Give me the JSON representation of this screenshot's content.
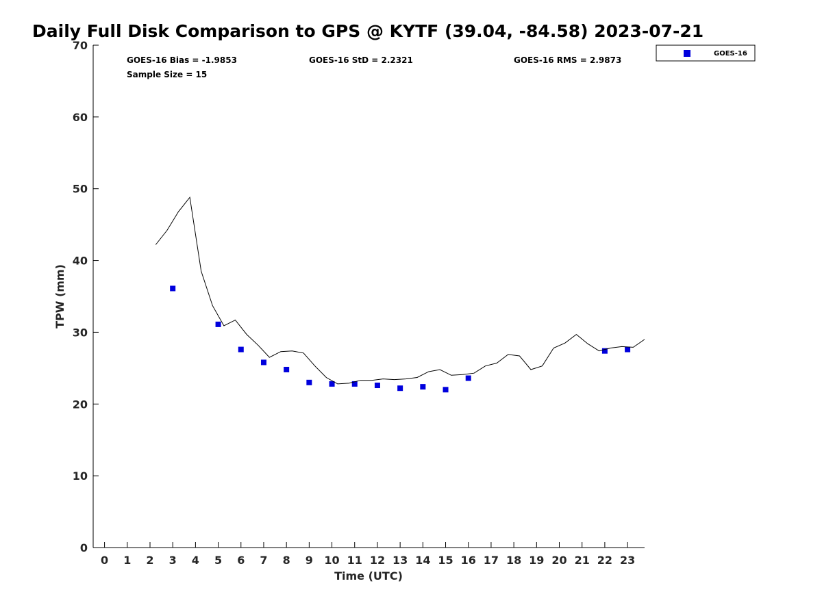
{
  "chart_data": {
    "type": "scatter",
    "title": "Daily Full Disk Comparison to GPS @ KYTF (39.04, -84.58) 2023-07-21",
    "xlabel": "Time (UTC)",
    "ylabel": "TPW (mm)",
    "xlim": [
      -0.5,
      23.75
    ],
    "ylim": [
      0,
      70
    ],
    "x_ticks": [
      0,
      1,
      2,
      3,
      4,
      5,
      6,
      7,
      8,
      9,
      10,
      11,
      12,
      13,
      14,
      15,
      16,
      17,
      18,
      19,
      20,
      21,
      22,
      23
    ],
    "x_tick_labels": [
      "0",
      "1",
      "2",
      "3",
      "4",
      "5",
      "6",
      "7",
      "8",
      "9",
      "10",
      "11",
      "12",
      "13",
      "14",
      "15",
      "16",
      "17",
      "18",
      "19",
      "20",
      "21",
      "22",
      "23"
    ],
    "y_ticks": [
      0,
      10,
      20,
      30,
      40,
      50,
      60,
      70
    ],
    "y_tick_labels": [
      "0",
      "10",
      "20",
      "30",
      "40",
      "50",
      "60",
      "70"
    ],
    "grid": false,
    "legend_position": "top-right outside",
    "stats": {
      "bias": "GOES-16 Bias = -1.9853",
      "std": "GOES-16 StD = 2.2321",
      "rms": "GOES-16 RMS = 2.9873",
      "sample": "Sample Size = 15"
    },
    "series": [
      {
        "name": "GOES-16",
        "kind": "scatter",
        "marker": "square",
        "color": "#0000dd",
        "x": [
          3,
          5,
          6,
          7,
          8,
          9,
          10,
          11,
          12,
          13,
          14,
          15,
          16,
          22,
          23
        ],
        "y": [
          36.1,
          31.1,
          27.6,
          25.8,
          24.8,
          23.0,
          22.8,
          22.8,
          22.6,
          22.2,
          22.4,
          22.0,
          23.6,
          27.4,
          27.6
        ]
      },
      {
        "kind": "line",
        "color": "#000000",
        "x": [
          2.25,
          2.75,
          3.25,
          3.75,
          4.25,
          4.75,
          5.25,
          5.75,
          6.25,
          6.75,
          7.25,
          7.75,
          8.25,
          8.75,
          9.25,
          9.75,
          10.25,
          10.75,
          11.25,
          11.75,
          12.25,
          12.75,
          13.25,
          13.75,
          14.25,
          14.75,
          15.25,
          15.75,
          16.25,
          16.75,
          17.25,
          17.75,
          18.25,
          18.75,
          19.25,
          19.75,
          20.25,
          20.75,
          21.25,
          21.75,
          22.25,
          22.75,
          23.25,
          23.75
        ],
        "y": [
          42.2,
          44.2,
          46.8,
          48.8,
          38.5,
          33.7,
          30.9,
          31.7,
          29.7,
          28.2,
          26.5,
          27.3,
          27.4,
          27.1,
          25.3,
          23.7,
          22.8,
          22.9,
          23.3,
          23.3,
          23.5,
          23.4,
          23.5,
          23.7,
          24.5,
          24.8,
          24.0,
          24.1,
          24.3,
          25.3,
          25.7,
          26.9,
          26.7,
          24.8,
          25.3,
          27.8,
          28.5,
          29.7,
          28.4,
          27.4,
          27.8,
          28.0,
          27.9,
          29.0
        ]
      }
    ]
  }
}
